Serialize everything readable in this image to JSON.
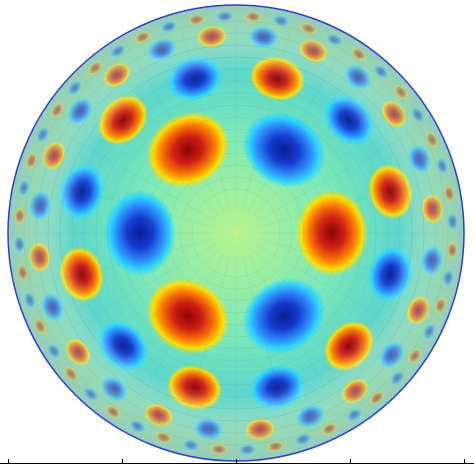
{
  "figure": {
    "type": "hyperbolic-disk-eigenfunction-heatmap",
    "colormap": "jet",
    "boundary_color": "#2b3fd6",
    "center_color": "#9cf08a",
    "symmetry_order": 6
  },
  "axis": {
    "visible_tick_count": 5
  }
}
